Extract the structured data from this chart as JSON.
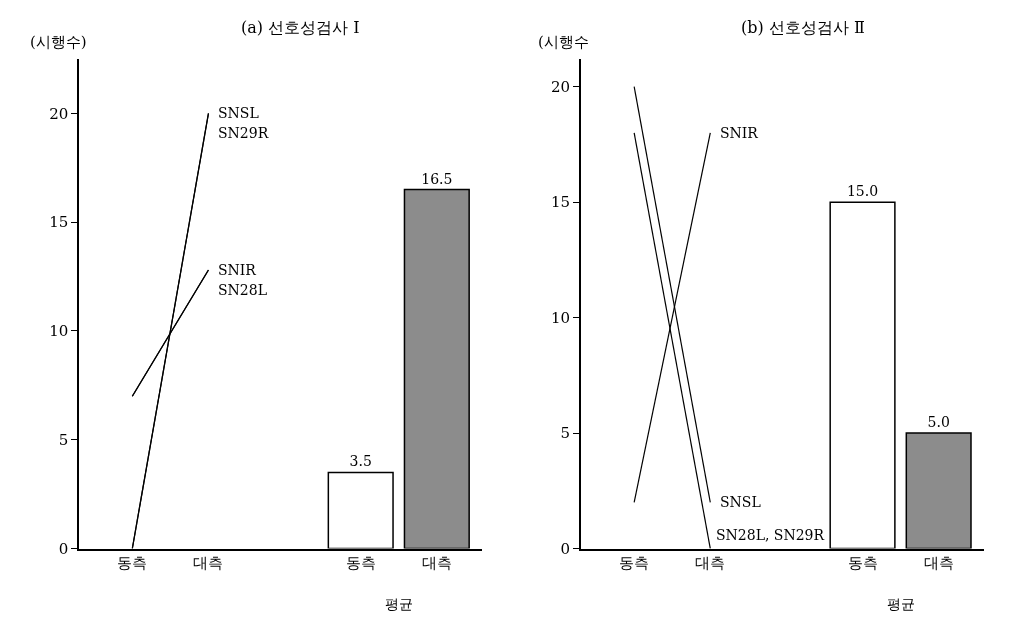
{
  "chart_data": [
    {
      "type": "line",
      "title": "(a) 선호성검사 Ⅰ",
      "ylabel": "(시행수)",
      "categories": [
        "동측",
        "대측",
        null,
        "동측",
        "대측"
      ],
      "ylim": [
        0,
        22.5
      ],
      "yticks": [
        0,
        5,
        10,
        15,
        20
      ],
      "legend": false,
      "marker": "none",
      "line_style": "solid",
      "series": [
        {
          "name": "SNSL",
          "color": "#000000",
          "values": [
            0,
            20,
            null,
            null,
            null
          ]
        },
        {
          "name": "SN29R",
          "color": "#000000",
          "values": [
            0,
            20,
            null,
            null,
            null
          ]
        },
        {
          "name": "SNIR",
          "color": "#000000",
          "values": [
            7,
            12.8,
            null,
            null,
            null
          ]
        },
        {
          "name": "SN28L",
          "color": "#000000",
          "values": [
            7,
            12.8,
            null,
            null,
            null
          ]
        },
        {
          "type": "bar",
          "colors": [
            "#ffffff",
            "#ffffff",
            "#ffffff",
            "#ffffff",
            "#8c8c8c"
          ],
          "values": [
            null,
            null,
            null,
            3.5,
            16.5
          ],
          "value_labels": [
            null,
            null,
            null,
            "3.5",
            "16.5"
          ]
        }
      ],
      "annotations": [
        "평균"
      ]
    },
    {
      "type": "line",
      "title": "(b) 선호성검사 Ⅱ",
      "ylabel": "(시행수",
      "categories": [
        "동측",
        "대측",
        null,
        "동측",
        "대측"
      ],
      "ylim": [
        0,
        21.2
      ],
      "yticks": [
        0,
        5,
        10,
        15,
        20
      ],
      "legend": false,
      "marker": "none",
      "line_style": "solid",
      "series": [
        {
          "name": "SNIR",
          "color": "#000000",
          "values": [
            2,
            18,
            null,
            null,
            null
          ]
        },
        {
          "name": "SNSL",
          "color": "#000000",
          "values": [
            20,
            2,
            null,
            null,
            null
          ]
        },
        {
          "name": "SN28L, SN29R",
          "color": "#000000",
          "values": [
            18,
            0,
            null,
            null,
            null
          ]
        },
        {
          "type": "bar",
          "colors": [
            "#ffffff",
            "#ffffff",
            "#ffffff",
            "#ffffff",
            "#8c8c8c"
          ],
          "values": [
            null,
            null,
            null,
            15.0,
            5.0
          ],
          "value_labels": [
            null,
            null,
            null,
            "15.0",
            "5.0"
          ]
        }
      ],
      "annotations": [
        "평균"
      ]
    }
  ]
}
